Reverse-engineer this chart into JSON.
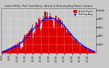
{
  "title": "Solar PV/Inv. Perf. East Array  Actual & Running Avg Power Output",
  "bg_color": "#c8c8c8",
  "plot_bg_color": "#c8c8c8",
  "grid_color": "#ffffff",
  "bar_color": "#dd0000",
  "avg_color": "#0000ee",
  "ylim": [
    0,
    1050
  ],
  "yticks": [
    200,
    400,
    600,
    800,
    1000
  ],
  "num_points": 144,
  "legend_labels": [
    "Actual Power",
    "Running Avg"
  ],
  "legend_colors": [
    "#dd0000",
    "#0000ee"
  ]
}
